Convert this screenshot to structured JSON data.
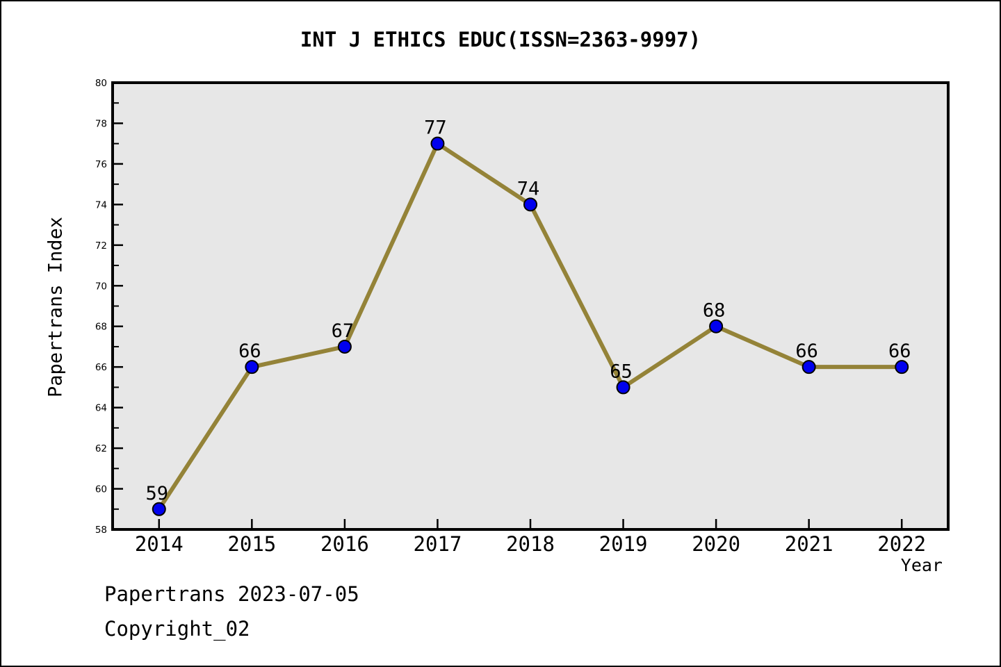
{
  "title": "INT J ETHICS EDUC(ISSN=2363-9997)",
  "footer": {
    "date_line": "Papertrans 2023-07-05",
    "copyright_line": "Copyright_02"
  },
  "chart_data": {
    "type": "line",
    "title": "INT J ETHICS EDUC(ISSN=2363-9997)",
    "xlabel": "Year",
    "ylabel": "Papertrans Index",
    "categories": [
      "2014",
      "2015",
      "2016",
      "2017",
      "2018",
      "2019",
      "2020",
      "2021",
      "2022"
    ],
    "values": [
      59,
      66,
      67,
      77,
      74,
      65,
      68,
      66,
      66
    ],
    "ylim": [
      58,
      80
    ],
    "y_major_tick_step": 2,
    "y_minor_tick_step": 1,
    "y_major_ticks": [
      58,
      60,
      62,
      64,
      66,
      68,
      70,
      72,
      74,
      76,
      78,
      80
    ],
    "grid": false,
    "legend": null,
    "point_labels": [
      "59",
      "66",
      "67",
      "77",
      "74",
      "65",
      "68",
      "66",
      "66"
    ],
    "colors": {
      "line": "#948338",
      "marker_fill": "#0101ee",
      "marker_edge": "#000000",
      "plot_background": "#e7e7e7",
      "axis": "#000000",
      "text": "#000000",
      "figure_background": "#ffffff"
    }
  }
}
